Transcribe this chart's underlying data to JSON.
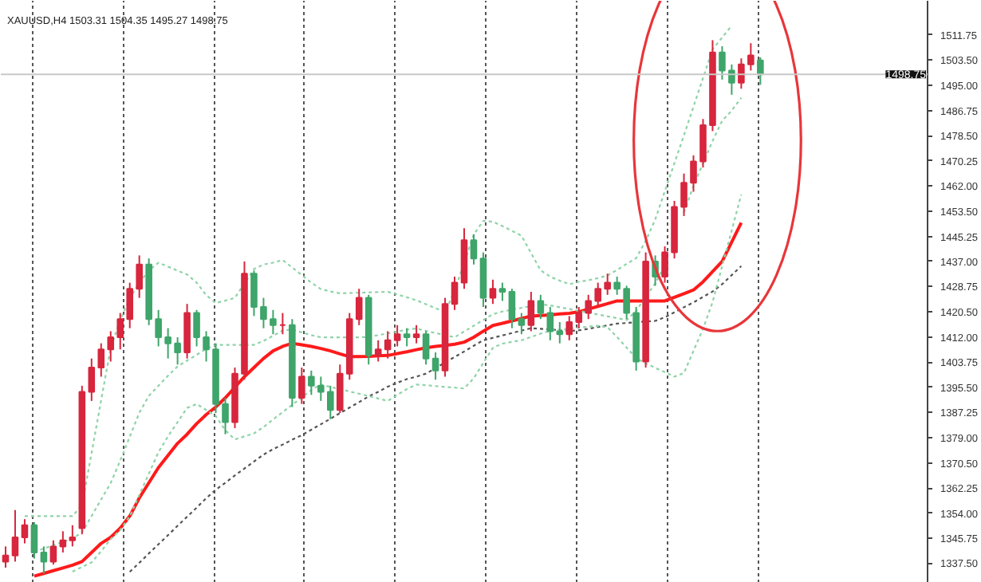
{
  "chart_data": {
    "type": "candlestick",
    "title": "XAUUSD,H4 1503.31 1504.35 1495.27 1498.75",
    "categories": [
      null,
      null,
      null,
      null,
      null,
      null,
      null,
      null,
      null,
      null,
      null,
      null,
      null,
      null,
      null,
      null,
      null,
      null,
      null,
      null,
      null,
      null,
      null,
      null,
      null,
      null,
      null,
      null,
      null,
      null,
      null,
      null,
      null,
      null,
      null,
      null,
      null,
      null,
      null,
      null,
      null,
      null,
      null,
      null,
      null,
      null,
      null,
      null,
      null,
      null,
      null,
      null,
      null,
      null,
      null,
      null,
      null,
      null,
      null,
      null,
      null,
      null,
      null,
      null,
      null,
      null,
      null,
      null,
      null,
      null,
      null,
      null,
      null,
      null,
      null,
      null,
      null,
      null,
      null,
      null,
      null,
      null,
      null,
      null,
      null,
      null,
      null,
      null,
      null,
      null,
      null,
      null,
      null,
      null,
      null,
      null,
      null
    ],
    "ohlc": [
      [
        1338,
        1343,
        1336,
        1340
      ],
      [
        1340,
        1355,
        1338,
        1346
      ],
      [
        1346,
        1352,
        1344,
        1350
      ],
      [
        1350,
        1351,
        1339,
        1341
      ],
      [
        1341,
        1343,
        1334,
        1338
      ],
      [
        1338,
        1345,
        1337,
        1343
      ],
      [
        1343,
        1348,
        1341,
        1345
      ],
      [
        1345,
        1350,
        1343,
        1346
      ],
      [
        1349,
        1396,
        1347,
        1394
      ],
      [
        1394,
        1405,
        1391,
        1402
      ],
      [
        1402,
        1410,
        1399,
        1408
      ],
      [
        1408,
        1414,
        1404,
        1412
      ],
      [
        1412,
        1420,
        1408,
        1418
      ],
      [
        1418,
        1430,
        1415,
        1428
      ],
      [
        1428,
        1439,
        1425,
        1436
      ],
      [
        1436,
        1438,
        1416,
        1418
      ],
      [
        1418,
        1421,
        1409,
        1412
      ],
      [
        1412,
        1415,
        1405,
        1410
      ],
      [
        1410,
        1412,
        1403,
        1407
      ],
      [
        1407,
        1423,
        1405,
        1420
      ],
      [
        1420,
        1421,
        1409,
        1412
      ],
      [
        1412,
        1414,
        1404,
        1408
      ],
      [
        1408,
        1410,
        1387,
        1390
      ],
      [
        1390,
        1392,
        1380,
        1384
      ],
      [
        1384,
        1402,
        1382,
        1400
      ],
      [
        1400,
        1437,
        1398,
        1433
      ],
      [
        1433,
        1434,
        1419,
        1422
      ],
      [
        1422,
        1425,
        1415,
        1418
      ],
      [
        1418,
        1421,
        1413,
        1416
      ],
      [
        1416,
        1420,
        1413,
        1416
      ],
      [
        1416,
        1418,
        1389,
        1392
      ],
      [
        1392,
        1402,
        1390,
        1399
      ],
      [
        1399,
        1401,
        1393,
        1396
      ],
      [
        1396,
        1399,
        1391,
        1394
      ],
      [
        1394,
        1396,
        1385,
        1388
      ],
      [
        1388,
        1403,
        1387,
        1400
      ],
      [
        1400,
        1420,
        1398,
        1418
      ],
      [
        1418,
        1428,
        1416,
        1425
      ],
      [
        1425,
        1426,
        1403,
        1406
      ],
      [
        1406,
        1411,
        1404,
        1408
      ],
      [
        1408,
        1414,
        1405,
        1411
      ],
      [
        1411,
        1416,
        1409,
        1413
      ],
      [
        1413,
        1415,
        1409,
        1412
      ],
      [
        1412,
        1416,
        1410,
        1413
      ],
      [
        1413,
        1414,
        1403,
        1405
      ],
      [
        1405,
        1407,
        1398,
        1401
      ],
      [
        1401,
        1425,
        1399,
        1423
      ],
      [
        1423,
        1432,
        1421,
        1430
      ],
      [
        1430,
        1448,
        1428,
        1444
      ],
      [
        1444,
        1446,
        1436,
        1438
      ],
      [
        1438,
        1440,
        1422,
        1425
      ],
      [
        1425,
        1431,
        1423,
        1428
      ],
      [
        1428,
        1430,
        1424,
        1427
      ],
      [
        1427,
        1428,
        1415,
        1418
      ],
      [
        1418,
        1420,
        1413,
        1416
      ],
      [
        1416,
        1427,
        1414,
        1424
      ],
      [
        1424,
        1426,
        1418,
        1420
      ],
      [
        1420,
        1422,
        1411,
        1414
      ],
      [
        1414,
        1417,
        1410,
        1413
      ],
      [
        1413,
        1419,
        1411,
        1417
      ],
      [
        1417,
        1422,
        1415,
        1420
      ],
      [
        1420,
        1426,
        1418,
        1424
      ],
      [
        1424,
        1430,
        1422,
        1428
      ],
      [
        1428,
        1433,
        1426,
        1430
      ],
      [
        1430,
        1432,
        1426,
        1428
      ],
      [
        1428,
        1429,
        1418,
        1420
      ],
      [
        1420,
        1422,
        1401,
        1404
      ],
      [
        1404,
        1440,
        1402,
        1437
      ],
      [
        1437,
        1439,
        1429,
        1432
      ],
      [
        1432,
        1442,
        1430,
        1440
      ],
      [
        1440,
        1457,
        1438,
        1455
      ],
      [
        1455,
        1466,
        1452,
        1463
      ],
      [
        1463,
        1472,
        1460,
        1470
      ],
      [
        1470,
        1484,
        1468,
        1482
      ],
      [
        1482,
        1510,
        1480,
        1506
      ],
      [
        1506,
        1508,
        1497,
        1500
      ],
      [
        1500,
        1502,
        1492,
        1496
      ],
      [
        1496,
        1504,
        1494,
        1502
      ],
      [
        1502,
        1509,
        1500,
        1505
      ],
      [
        1503.31,
        1504.35,
        1495.27,
        1498.75
      ],
      null,
      null,
      null,
      null,
      null,
      null,
      null,
      null,
      null,
      null,
      null,
      null,
      null,
      null,
      null,
      null,
      null
    ],
    "colors": [
      "#d7263d",
      "#d7263d",
      "#d7263d",
      "#3fa56a",
      "#3fa56a",
      "#d7263d",
      "#d7263d",
      "#d7263d",
      "#d7263d",
      "#d7263d",
      "#d7263d",
      "#d7263d",
      "#d7263d",
      "#d7263d",
      "#d7263d",
      "#3fa56a",
      "#3fa56a",
      "#3fa56a",
      "#3fa56a",
      "#d7263d",
      "#3fa56a",
      "#3fa56a",
      "#3fa56a",
      "#3fa56a",
      "#d7263d",
      "#d7263d",
      "#3fa56a",
      "#3fa56a",
      "#3fa56a",
      "#d7263d",
      "#3fa56a",
      "#d7263d",
      "#3fa56a",
      "#3fa56a",
      "#3fa56a",
      "#d7263d",
      "#d7263d",
      "#d7263d",
      "#3fa56a",
      "#d7263d",
      "#d7263d",
      "#d7263d",
      "#3fa56a",
      "#d7263d",
      "#3fa56a",
      "#3fa56a",
      "#d7263d",
      "#d7263d",
      "#d7263d",
      "#3fa56a",
      "#3fa56a",
      "#d7263d",
      "#3fa56a",
      "#3fa56a",
      "#3fa56a",
      "#d7263d",
      "#3fa56a",
      "#3fa56a",
      "#3fa56a",
      "#d7263d",
      "#d7263d",
      "#d7263d",
      "#d7263d",
      "#d7263d",
      "#3fa56a",
      "#3fa56a",
      "#3fa56a",
      "#d7263d",
      "#3fa56a",
      "#d7263d",
      "#d7263d",
      "#d7263d",
      "#d7263d",
      "#d7263d",
      "#d7263d",
      "#3fa56a",
      "#3fa56a",
      "#d7263d",
      "#d7263d",
      "#3fa56a",
      null,
      null,
      null,
      null,
      null,
      null,
      null,
      null,
      null,
      null,
      null,
      null,
      null,
      null,
      null,
      null,
      null
    ],
    "series": [
      {
        "type": "line",
        "color": "#ff1a1a",
        "line_style": "solid",
        "values": [
          null,
          null,
          null,
          1333.2,
          1334.1,
          1335,
          1335.9,
          1336.8,
          1338,
          1341,
          1344,
          1346,
          1349,
          1353,
          1359,
          1364,
          1369,
          1373,
          1377,
          1380,
          1383.5,
          1386.5,
          1389,
          1392,
          1395.5,
          1399,
          1402,
          1405,
          1407.5,
          1409,
          1410,
          1409.5,
          1409,
          1408.3,
          1407.5,
          1406.5,
          1405.6,
          1405.6,
          1405.7,
          1405.9,
          1406,
          1406.6,
          1407.2,
          1407.9,
          1408.5,
          1409,
          1409.3,
          1409.7,
          1410.4,
          1412,
          1414,
          1415.9,
          1416.6,
          1417.4,
          1418.2,
          1419,
          1419.2,
          1419.4,
          1419.7,
          1419.9,
          1420.4,
          1421.3,
          1422.2,
          1423.1,
          1424,
          1424,
          1424,
          1424,
          1424,
          1424,
          1425.2,
          1426.4,
          1427.6,
          1430.3,
          1433.7,
          1437,
          1443.4,
          1449.8,
          null,
          null,
          null,
          null,
          null,
          null,
          null,
          null,
          null,
          null,
          null,
          null,
          null,
          null,
          null,
          null,
          null,
          null,
          null
        ]
      },
      {
        "type": "line",
        "color": "#555555",
        "line_style": "dotted",
        "values": [
          null,
          null,
          null,
          null,
          null,
          null,
          null,
          null,
          null,
          null,
          null,
          null,
          null,
          1334.6,
          1337.6,
          1340.7,
          1343.7,
          1346.7,
          1349.8,
          1352.8,
          1355.8,
          1358.9,
          1361.7,
          1364,
          1366.4,
          1368.7,
          1371,
          1373.3,
          1375.1,
          1376.6,
          1378.2,
          1379.7,
          1381.5,
          1383.3,
          1385.1,
          1387,
          1388.8,
          1390.6,
          1392.5,
          1394,
          1395.7,
          1397,
          1398.2,
          1399,
          1400,
          1401.8,
          1403.7,
          1405.5,
          1407.3,
          1409.2,
          1411,
          1411.8,
          1412.6,
          1413.4,
          1414.2,
          1415,
          1414.8,
          1414.6,
          1414.3,
          1414.1,
          1414.3,
          1414.8,
          1415.4,
          1415.9,
          1416.5,
          1416.7,
          1417,
          1417.2,
          1417.4,
          1418.6,
          1420.2,
          1421.9,
          1423.5,
          1425.3,
          1427.1,
          1429.5,
          1432.5,
          1435.5,
          null,
          null,
          null,
          null,
          null,
          null,
          null,
          null,
          null,
          null,
          null,
          null,
          null,
          null,
          null,
          null,
          null,
          null,
          null
        ]
      },
      {
        "type": "line",
        "color": "#8fd3a8",
        "line_style": "dotted",
        "values": [
          null,
          null,
          1353,
          1353,
          1353,
          1353,
          1353,
          1353,
          1356.5,
          1373.8,
          1391.2,
          1408.5,
          1417.7,
          1424.9,
          1429.9,
          1434.1,
          1436.6,
          1435.3,
          1434,
          1432.7,
          1430,
          1425.9,
          1423.3,
          1424.1,
          1425,
          1429.8,
          1434.5,
          1436,
          1436.6,
          1437.5,
          1435,
          1432.5,
          1430,
          1427.9,
          1427.1,
          1426.5,
          1426.6,
          1426.7,
          1426.8,
          1426.9,
          1427,
          1426.1,
          1425.2,
          1424.2,
          1422.9,
          1421.6,
          1420.3,
          1427.4,
          1436.6,
          1445.9,
          1450.4,
          1450.1,
          1448.7,
          1447.1,
          1445.5,
          1439.8,
          1434.1,
          1432,
          1430.7,
          1429.5,
          1430.3,
          1430.8,
          1431.5,
          1432.4,
          1434.2,
          1436.2,
          1438.1,
          1443.8,
          1450.9,
          1460.2,
          1469.4,
          1478.6,
          1488.1,
          1497.5,
          1507,
          1510.9,
          1514.8,
          null,
          null,
          null,
          null,
          null,
          null,
          null,
          null,
          null,
          null,
          null,
          null,
          null,
          null,
          null,
          null,
          null,
          null,
          null,
          null
        ]
      },
      {
        "type": "line",
        "color": "#8fd3a8",
        "line_style": "dotted",
        "values": [
          null,
          null,
          null,
          1341.2,
          1342.3,
          1343.4,
          1344.5,
          1345.6,
          1347.6,
          1353,
          1358.5,
          1363.9,
          1371.3,
          1379.2,
          1387.1,
          1392.7,
          1396,
          1399.3,
          1402.4,
          1404.3,
          1406.2,
          1408.2,
          1409.5,
          1409.5,
          1409.5,
          1409.5,
          1409.5,
          1410.8,
          1412.5,
          1414.2,
          1414.6,
          1413.6,
          1412.7,
          1412,
          1412,
          1412,
          1412,
          1412,
          1412.1,
          1412.7,
          1413.3,
          1413.9,
          1414.5,
          1414.9,
          1414.1,
          1413.4,
          1412.7,
          1412,
          1413.9,
          1415.8,
          1417.7,
          1419.6,
          1420.5,
          1421.1,
          1421.7,
          1422.3,
          1422.9,
          1422.5,
          1421.9,
          1421.3,
          1420.7,
          1420.1,
          1419.5,
          1418.9,
          1418.3,
          1417.7,
          1420.7,
          1425.3,
          1429.8,
          1435.6,
          null,
          1453.2,
          1462,
          1469.4,
          1476.8,
          1483.4,
          1486.8,
          1491,
          null,
          null,
          null,
          null,
          null,
          null,
          null,
          null,
          null,
          null,
          null,
          null,
          null,
          null,
          null,
          null,
          null,
          null,
          null
        ]
      },
      {
        "type": "line",
        "color": "#8fd3a8",
        "line_style": "dotted",
        "values": [
          null,
          null,
          null,
          null,
          null,
          null,
          null,
          1334.7,
          1336.2,
          1337.7,
          1341.4,
          1345.4,
          1348.4,
          1352.9,
          1360,
          1367,
          1374.1,
          1379.3,
          1384,
          1388.7,
          1390,
          1388,
          1386,
          1381.3,
          1378.3,
          1379.3,
          1380.3,
          1382.4,
          1384.9,
          1387.3,
          1389.7,
          1392.1,
          1394.6,
          1396.4,
          1395.6,
          1394.9,
          1394.1,
          1393.4,
          1392.6,
          1391.8,
          1391,
          1393,
          1394.9,
          1396.4,
          1396.2,
          1395.9,
          1395.6,
          1395.4,
          1395.1,
          1398.5,
          1403.5,
          1408.5,
          1409.9,
          1410.5,
          1411,
          1412.1,
          1413.2,
          1414.1,
          1414.5,
          1414.8,
          1415.2,
          1415.5,
          1415.8,
          1415.3,
          1412.1,
          1408.6,
          1405.1,
          1403.4,
          1401.9,
          1400.5,
          1399,
          1400.2,
          1407.5,
          1414.8,
          1423.6,
          1435.5,
          1447.2,
          1459.1,
          null,
          null,
          null,
          null,
          null,
          null,
          null,
          null,
          null,
          null,
          null,
          null,
          null,
          null,
          null,
          null,
          null,
          null,
          null
        ]
      }
    ],
    "ylim": [
      1331,
      1523
    ],
    "yticks": [
      {
        "value": 1511.75,
        "label": "1511.75"
      },
      {
        "value": 1503.5,
        "label": "1503.50"
      },
      {
        "value": 1495,
        "label": "1495.00"
      },
      {
        "value": 1486.75,
        "label": "1486.75"
      },
      {
        "value": 1478.5,
        "label": "1478.50"
      },
      {
        "value": 1470.25,
        "label": "1470.25"
      },
      {
        "value": 1462,
        "label": "1462.00"
      },
      {
        "value": 1453.5,
        "label": "1453.50"
      },
      {
        "value": 1445.25,
        "label": "1445.25"
      },
      {
        "value": 1437,
        "label": "1437.00"
      },
      {
        "value": 1428.75,
        "label": "1428.75"
      },
      {
        "value": 1420.5,
        "label": "1420.50"
      },
      {
        "value": 1412,
        "label": "1412.00"
      },
      {
        "value": 1403.75,
        "label": "1403.75"
      },
      {
        "value": 1395.5,
        "label": "1395.50"
      },
      {
        "value": 1387.25,
        "label": "1387.25"
      },
      {
        "value": 1379,
        "label": "1379.00"
      },
      {
        "value": 1370.5,
        "label": "1370.50"
      },
      {
        "value": 1362.25,
        "label": "1362.25"
      },
      {
        "value": 1354,
        "label": "1354.00"
      },
      {
        "value": 1345.75,
        "label": "1345.75"
      },
      {
        "value": 1337.5,
        "label": "1337.50"
      }
    ],
    "ref_lines": [
      {
        "axis": "y",
        "value": 1498.75,
        "label": "1498.75",
        "color": "#c8c8c8"
      }
    ],
    "grid": "x",
    "tick_labels": "y"
  }
}
